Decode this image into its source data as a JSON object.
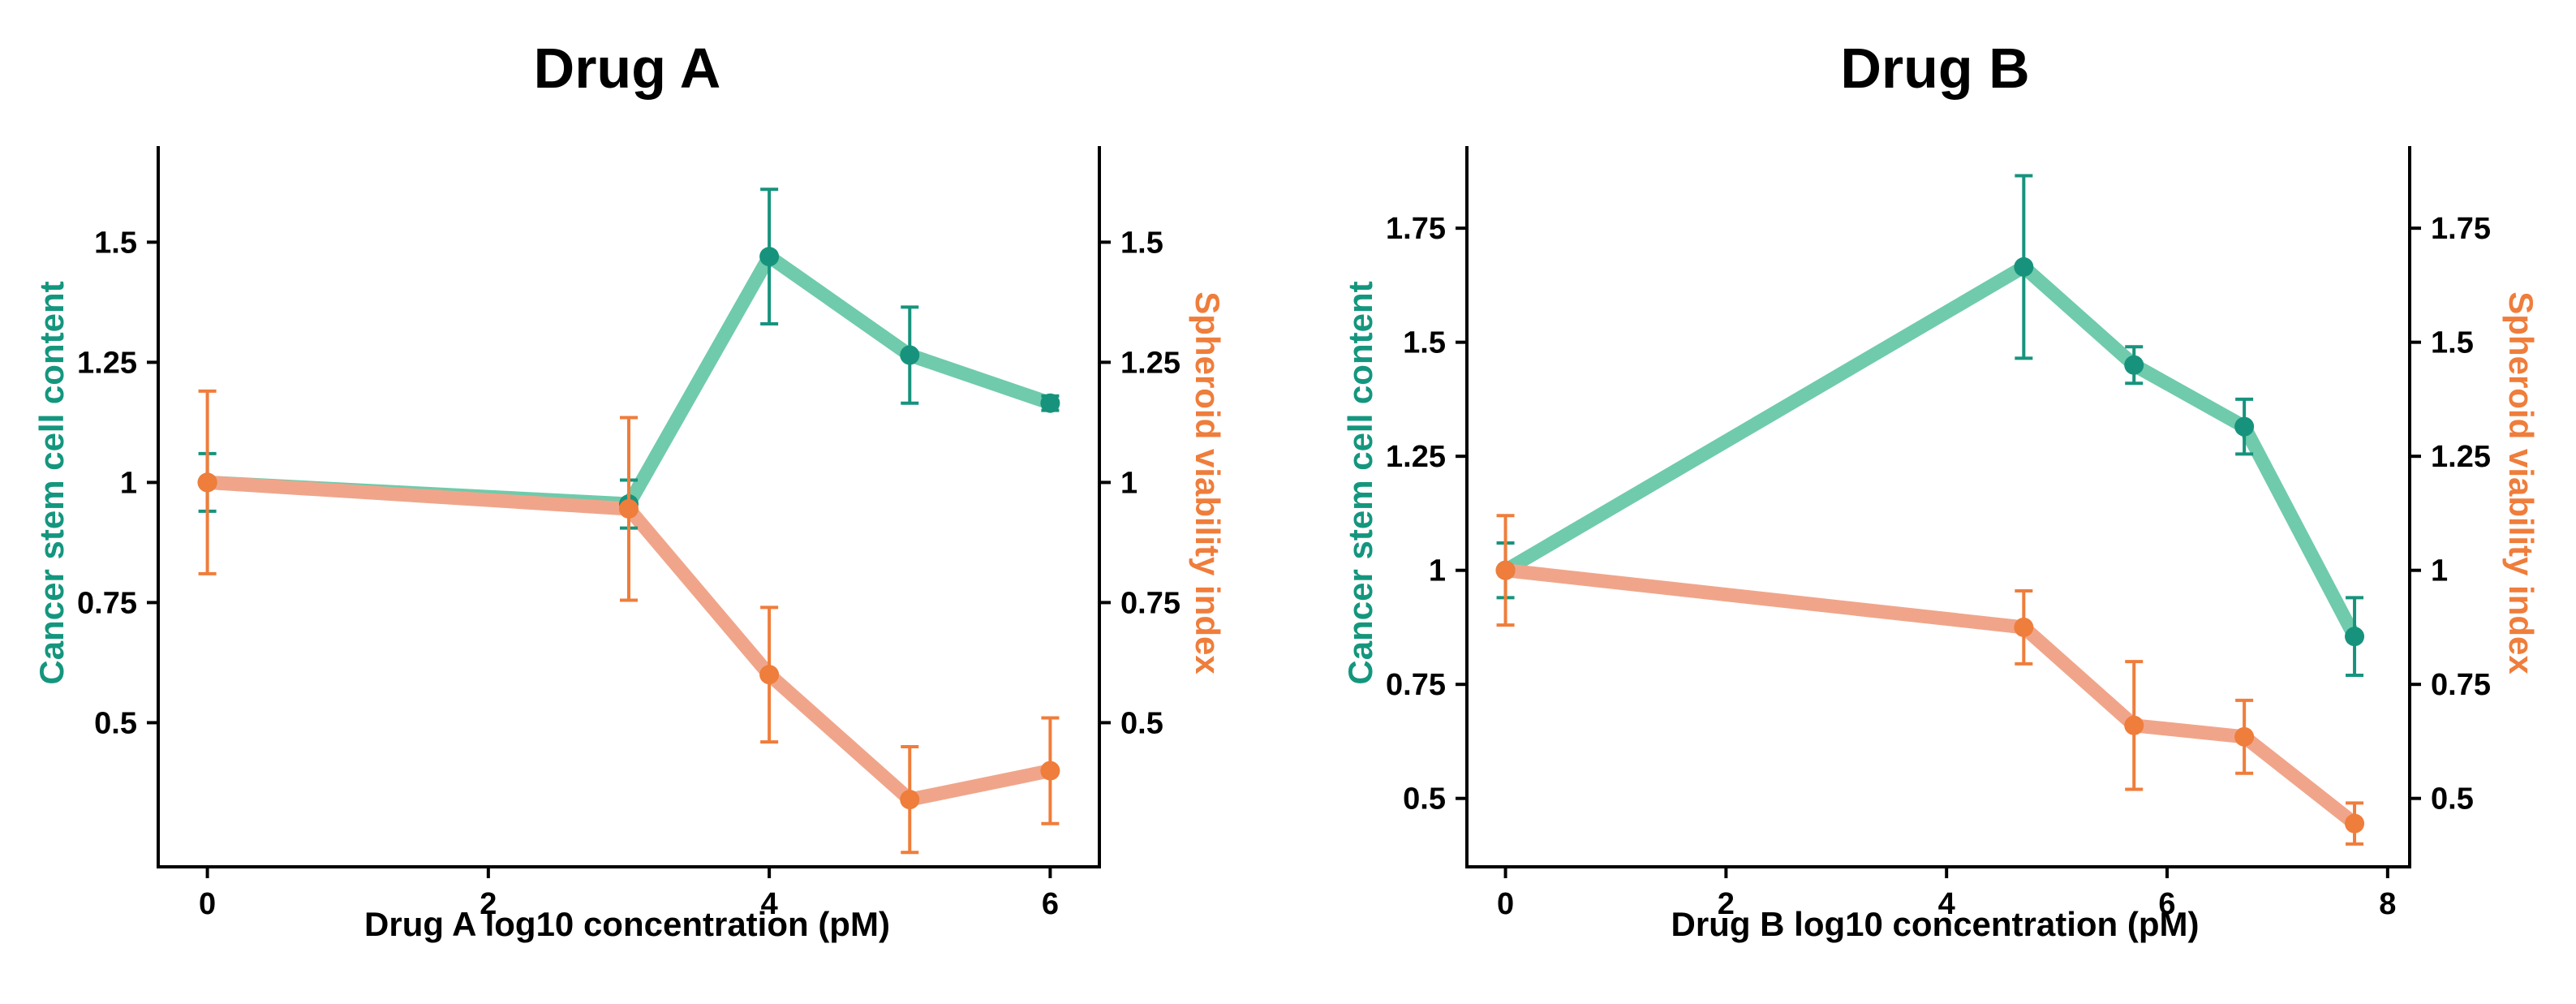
{
  "colors": {
    "stem_line": "#6fcbab",
    "stem_marker": "#17937d",
    "stem_label": "#14967e",
    "viability_line": "#f0a58a",
    "viability_marker": "#ef7d3b",
    "viability_label": "#ef7d3b",
    "axis": "#000000"
  },
  "chart_data": [
    {
      "type": "line",
      "title": "Drug A",
      "xlabel": "Drug A log10 concentration (pM)",
      "ylabel_left": "Cancer stem cell content",
      "ylabel_right": "Spheroid viability index",
      "xlim": [
        -0.35,
        6.35
      ],
      "ylim": [
        0.2,
        1.7
      ],
      "x_ticks": [
        0,
        2,
        4,
        6
      ],
      "x_tick_labels": [
        "0",
        "2",
        "4",
        "6"
      ],
      "y_ticks": [
        0.5,
        0.75,
        1,
        1.25,
        1.5
      ],
      "y_tick_labels": [
        "0.5",
        "0.75",
        "1",
        "1.25",
        "1.5"
      ],
      "right_y_ticks": [
        0.5,
        0.75,
        1,
        1.25,
        1.5
      ],
      "right_y_tick_labels": [
        "0.5",
        "0.75",
        "1",
        "1.25",
        "1.5"
      ],
      "grid": false,
      "series": [
        {
          "key": "stem",
          "axis": "left",
          "x": [
            0,
            3,
            4,
            5,
            6
          ],
          "y": [
            1.0,
            0.955,
            1.47,
            1.265,
            1.165
          ],
          "err": [
            0.06,
            0.05,
            0.14,
            0.1,
            0.015
          ]
        },
        {
          "key": "viability",
          "axis": "right",
          "x": [
            0,
            3,
            4,
            5,
            6
          ],
          "y": [
            1.0,
            0.945,
            0.6,
            0.34,
            0.4
          ],
          "err": [
            0.19,
            0.19,
            0.14,
            0.11,
            0.11
          ]
        }
      ]
    },
    {
      "type": "line",
      "title": "Drug B",
      "xlabel": "Drug B log10 concentration (pM)",
      "ylabel_left": "Cancer stem cell content",
      "ylabel_right": "Spheroid viability index",
      "xlim": [
        -0.35,
        8.2
      ],
      "ylim": [
        0.35,
        1.93
      ],
      "x_ticks": [
        0,
        2,
        4,
        6,
        8
      ],
      "x_tick_labels": [
        "0",
        "2",
        "4",
        "6",
        "8"
      ],
      "y_ticks": [
        0.5,
        0.75,
        1,
        1.25,
        1.5,
        1.75
      ],
      "y_tick_labels": [
        "0.5",
        "0.75",
        "1",
        "1.25",
        "1.5",
        "1.75"
      ],
      "right_y_ticks": [
        0.5,
        0.75,
        1,
        1.25,
        1.5,
        1.75
      ],
      "right_y_tick_labels": [
        "0.5",
        "0.75",
        "1",
        "1.25",
        "1.5",
        "1.75"
      ],
      "grid": false,
      "series": [
        {
          "key": "stem",
          "axis": "left",
          "x": [
            0,
            4.7,
            5.7,
            6.7,
            7.7
          ],
          "y": [
            1.0,
            1.665,
            1.45,
            1.315,
            0.855
          ],
          "err": [
            0.06,
            0.2,
            0.04,
            0.06,
            0.085
          ]
        },
        {
          "key": "viability",
          "axis": "right",
          "x": [
            0,
            4.7,
            5.7,
            6.7,
            7.7
          ],
          "y": [
            1.0,
            0.875,
            0.66,
            0.635,
            0.445
          ],
          "err": [
            0.12,
            0.08,
            0.14,
            0.08,
            0.045
          ]
        }
      ]
    }
  ]
}
